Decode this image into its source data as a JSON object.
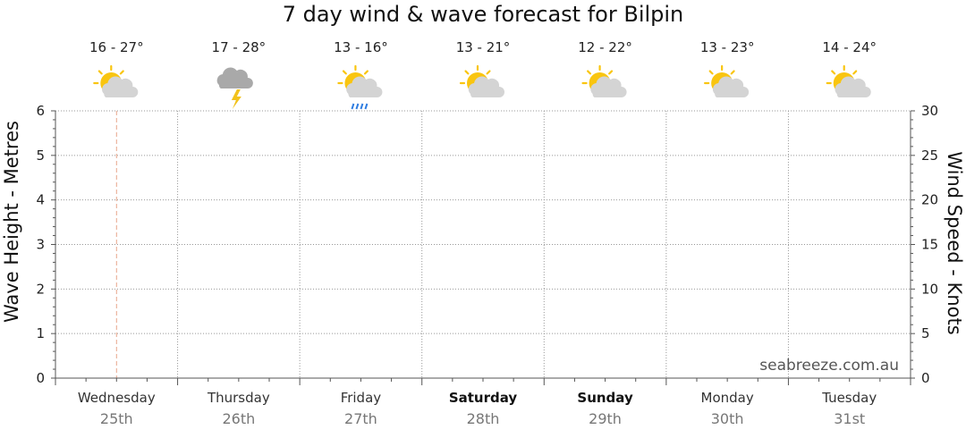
{
  "title": "7 day wind & wave forecast for Bilpin",
  "watermark": "seabreeze.com.au",
  "chart_data": {
    "type": "line",
    "title": "7 day wind & wave forecast for Bilpin",
    "ylabel_left": "Wave Height - Metres",
    "ylabel_right": "Wind Speed - Knots",
    "ylim_left": [
      0,
      6
    ],
    "ylim_right": [
      0,
      30
    ],
    "yticks_left": [
      "0",
      "1",
      "2",
      "3",
      "4",
      "5",
      "6"
    ],
    "yticks_right": [
      "0",
      "5",
      "10",
      "15",
      "20",
      "25",
      "30"
    ],
    "grid": true,
    "current_time_marker_day_index": 0.5,
    "series": [],
    "days": [
      {
        "day": "Wednesday",
        "date": "25th",
        "temp": "16 - 27°",
        "icon": "sun-cloud-icon",
        "bold": false
      },
      {
        "day": "Thursday",
        "date": "26th",
        "temp": "17 - 28°",
        "icon": "storm-cloud-icon",
        "bold": false
      },
      {
        "day": "Friday",
        "date": "27th",
        "temp": "13 - 16°",
        "icon": "sun-shower-icon",
        "bold": false
      },
      {
        "day": "Saturday",
        "date": "28th",
        "temp": "13 - 21°",
        "icon": "sun-cloud-icon",
        "bold": true
      },
      {
        "day": "Sunday",
        "date": "29th",
        "temp": "12 - 22°",
        "icon": "sun-cloud-icon",
        "bold": true
      },
      {
        "day": "Monday",
        "date": "30th",
        "temp": "13 - 23°",
        "icon": "sun-cloud-icon",
        "bold": false
      },
      {
        "day": "Tuesday",
        "date": "31st",
        "temp": "14 - 24°",
        "icon": "sun-cloud-icon",
        "bold": false
      }
    ]
  },
  "colors": {
    "sun": "#f9c510",
    "cloud_light": "#d4d4d4",
    "cloud_dark": "#a9a9a9",
    "lightning": "#f2c21b",
    "rain": "#2f7de1",
    "now_marker": "#e8a58a",
    "grid": "#999999"
  }
}
